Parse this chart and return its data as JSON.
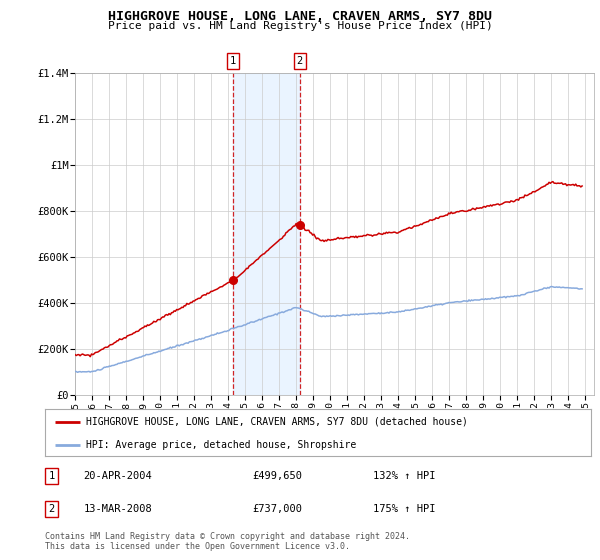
{
  "title": "HIGHGROVE HOUSE, LONG LANE, CRAVEN ARMS, SY7 8DU",
  "subtitle": "Price paid vs. HM Land Registry's House Price Index (HPI)",
  "ylim": [
    0,
    1400000
  ],
  "yticks": [
    0,
    200000,
    400000,
    600000,
    800000,
    1000000,
    1200000,
    1400000
  ],
  "ytick_labels": [
    "£0",
    "£200K",
    "£400K",
    "£600K",
    "£800K",
    "£1M",
    "£1.2M",
    "£1.4M"
  ],
  "hpi_color": "#88aadd",
  "price_color": "#cc0000",
  "t1_year": 2004.3,
  "t2_year": 2008.2,
  "t1_price": 499650,
  "t2_price": 737000,
  "legend_property": "HIGHGROVE HOUSE, LONG LANE, CRAVEN ARMS, SY7 8DU (detached house)",
  "legend_hpi": "HPI: Average price, detached house, Shropshire",
  "t1_date": "20-APR-2004",
  "t2_date": "13-MAR-2008",
  "t1_pct": "132% ↑ HPI",
  "t2_pct": "175% ↑ HPI",
  "footer": "Contains HM Land Registry data © Crown copyright and database right 2024.\nThis data is licensed under the Open Government Licence v3.0.",
  "shaded_color": "#ddeeff",
  "shaded_alpha": 0.6
}
